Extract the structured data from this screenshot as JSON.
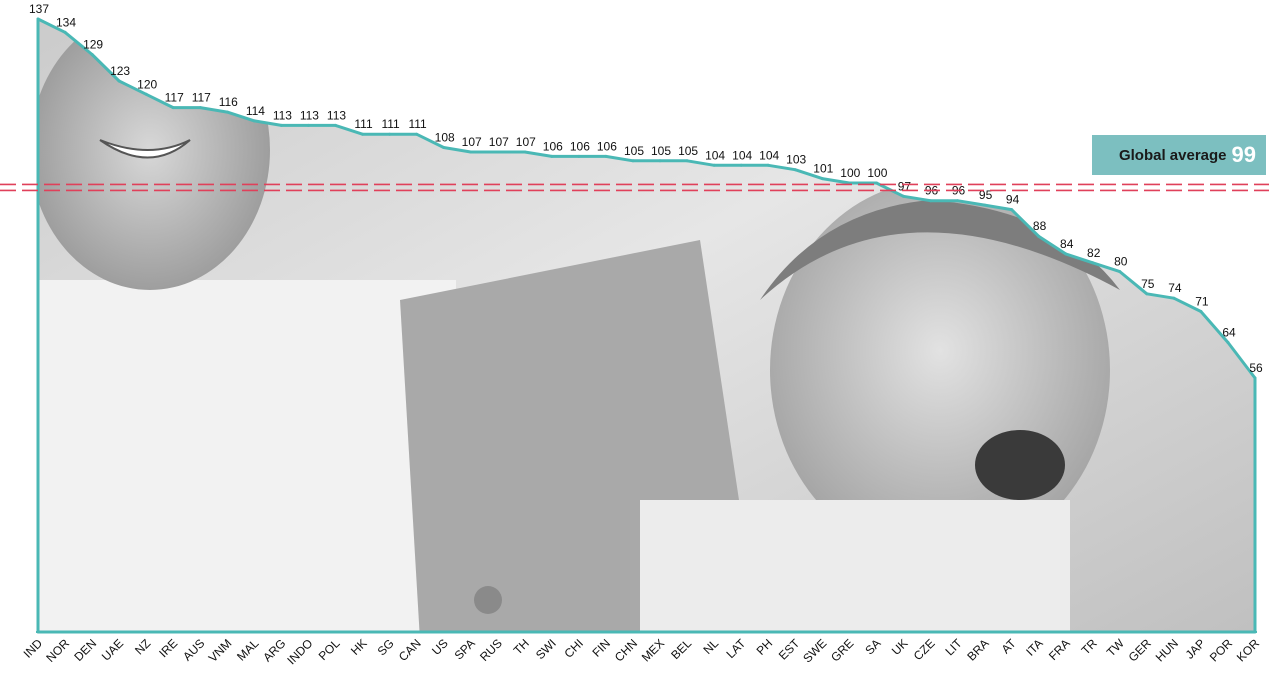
{
  "chart_data": {
    "type": "area",
    "categories": [
      "IND",
      "NOR",
      "DEN",
      "UAE",
      "NZ",
      "IRE",
      "AUS",
      "VNM",
      "MAL",
      "ARG",
      "INDO",
      "POL",
      "HK",
      "SG",
      "CAN",
      "US",
      "SPA",
      "RUS",
      "TH",
      "SWI",
      "CHI",
      "FIN",
      "CHN",
      "MEX",
      "BEL",
      "NL",
      "LAT",
      "PH",
      "EST",
      "SWE",
      "GRE",
      "SA",
      "UK",
      "CZE",
      "LIT",
      "BRA",
      "AT",
      "ITA",
      "FRA",
      "TR",
      "TW",
      "GER",
      "HUN",
      "JAP",
      "POR",
      "KOR"
    ],
    "values": [
      137,
      134,
      129,
      123,
      120,
      117,
      117,
      116,
      114,
      113,
      113,
      113,
      111,
      111,
      111,
      108,
      107,
      107,
      107,
      106,
      106,
      106,
      105,
      105,
      105,
      104,
      104,
      104,
      103,
      101,
      100,
      100,
      97,
      96,
      96,
      95,
      94,
      88,
      84,
      82,
      80,
      75,
      74,
      71,
      64,
      56
    ],
    "reference_line": {
      "label": "Global average",
      "value": 99
    },
    "grid": false,
    "colors": {
      "line": "#4ab8b5",
      "reference_line": "#e0405a",
      "label_box": "#7cbfc0",
      "label_value": "#ffffff"
    }
  }
}
